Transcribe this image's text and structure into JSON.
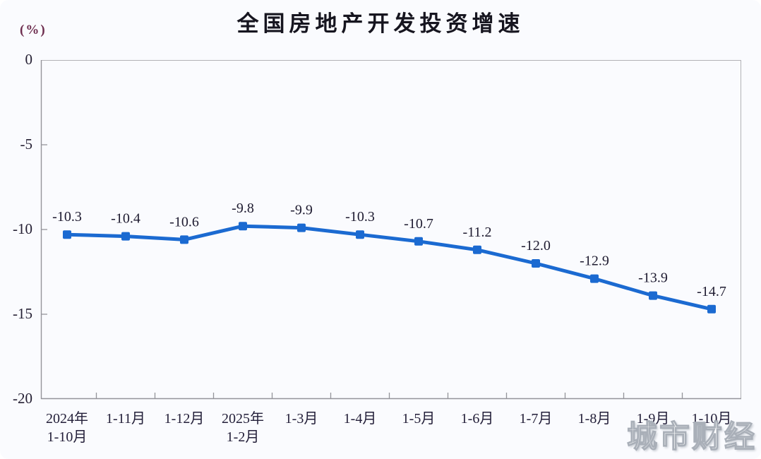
{
  "header": {
    "title": "全国房地产开发投资增速",
    "unit_label": "(%)"
  },
  "chart_data": {
    "type": "line",
    "title": "全国房地产开发投资增速",
    "ylabel": "(%)",
    "categories": [
      [
        "2024年",
        "1-10月"
      ],
      [
        "1-11月"
      ],
      [
        "1-12月"
      ],
      [
        "2025年",
        "1-2月"
      ],
      [
        "1-3月"
      ],
      [
        "1-4月"
      ],
      [
        "1-5月"
      ],
      [
        "1-6月"
      ],
      [
        "1-7月"
      ],
      [
        "1-8月"
      ],
      [
        "1-9月"
      ],
      [
        "1-10月"
      ]
    ],
    "values": [
      -10.3,
      -10.4,
      -10.6,
      -9.8,
      -9.9,
      -10.3,
      -10.7,
      -11.2,
      -12.0,
      -12.9,
      -13.9,
      -14.7
    ],
    "data_labels": [
      "-10.3",
      "-10.4",
      "-10.6",
      "-9.8",
      "-9.9",
      "-10.3",
      "-10.7",
      "-11.2",
      "-12.0",
      "-12.9",
      "-13.9",
      "-14.7"
    ],
    "yticks": [
      0,
      -5,
      -10,
      -15,
      -20
    ],
    "ylim": [
      -20,
      0
    ],
    "grid": false,
    "legend": "none",
    "line_color": "#1b6ad1",
    "marker": "square",
    "label_color": "#1e1b30",
    "axis_color": "#b2b2b6",
    "tick_color": "#94949a"
  },
  "watermark": {
    "text": "城市财经"
  }
}
